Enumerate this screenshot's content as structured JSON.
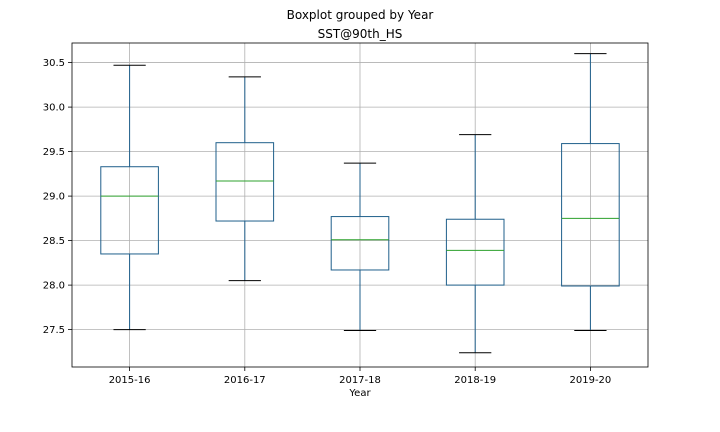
{
  "chart_data": {
    "type": "boxplot",
    "suptitle": "Boxplot grouped by Year",
    "title": "SST@90th_HS",
    "xlabel": "Year",
    "ylabel": "",
    "ylim": [
      27.08,
      30.72
    ],
    "yticks": [
      "27.5",
      "28.0",
      "28.5",
      "29.0",
      "29.5",
      "30.0",
      "30.5"
    ],
    "grid": true,
    "colors": {
      "box": "#1f5f8b",
      "median": "#2ca02c",
      "cap": "#000000",
      "grid": "#b0b0b0"
    },
    "categories": [
      "2015-16",
      "2016-17",
      "2017-18",
      "2018-19",
      "2019-20"
    ],
    "boxes": [
      {
        "min": 27.5,
        "q1": 28.35,
        "median": 29.0,
        "q3": 29.33,
        "max": 30.47
      },
      {
        "min": 28.05,
        "q1": 28.72,
        "median": 29.17,
        "q3": 29.6,
        "max": 30.34
      },
      {
        "min": 27.49,
        "q1": 28.17,
        "median": 28.51,
        "q3": 28.77,
        "max": 29.37
      },
      {
        "min": 27.24,
        "q1": 28.0,
        "median": 28.39,
        "q3": 28.74,
        "max": 29.69
      },
      {
        "min": 27.49,
        "q1": 27.99,
        "median": 28.75,
        "q3": 29.59,
        "max": 30.6
      }
    ]
  }
}
